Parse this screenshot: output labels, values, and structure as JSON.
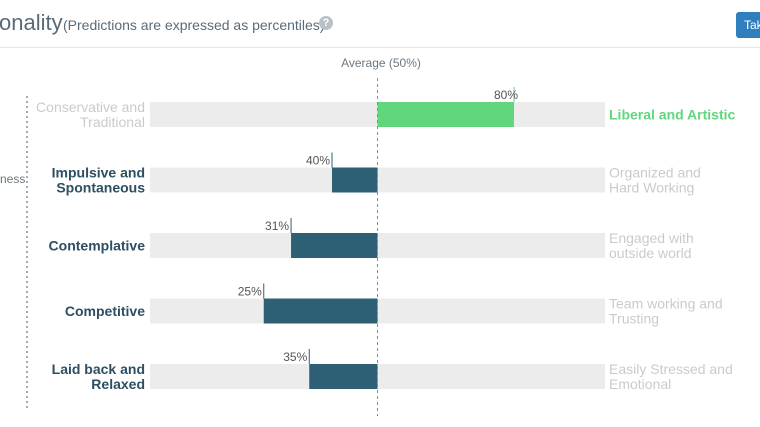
{
  "header": {
    "title": "onality",
    "subtitle": "(Predictions are expressed as percentiles)",
    "help_icon": "?",
    "take_button_label": "Tak"
  },
  "left_fragment": "ness",
  "colors": {
    "track": "#ececec",
    "highlight_bar": "#62d67c",
    "normal_bar": "#2d5f75",
    "active_label": "#2d4e63",
    "highlight_label": "#62d67c",
    "muted_label": "#c8cbce"
  },
  "chart_data": {
    "type": "bar",
    "orientation": "horizontal-diverging",
    "baseline": 50,
    "xlim": [
      0,
      100
    ],
    "reference_line_label": "Average (50%)",
    "categories": [
      {
        "left": [
          "Conservative and",
          "Traditional"
        ],
        "right": [
          "Liberal and Artistic"
        ],
        "value": 80,
        "value_label": "80%",
        "highlight": true,
        "active_side": "right"
      },
      {
        "left": [
          "Impulsive and",
          "Spontaneous"
        ],
        "right": [
          "Organized and",
          "Hard Working"
        ],
        "value": 40,
        "value_label": "40%",
        "highlight": false,
        "active_side": "left"
      },
      {
        "left": [
          "Contemplative"
        ],
        "right": [
          "Engaged with",
          "outside world"
        ],
        "value": 31,
        "value_label": "31%",
        "highlight": false,
        "active_side": "left"
      },
      {
        "left": [
          "Competitive"
        ],
        "right": [
          "Team working and",
          "Trusting"
        ],
        "value": 25,
        "value_label": "25%",
        "highlight": false,
        "active_side": "left"
      },
      {
        "left": [
          "Laid back and",
          "Relaxed"
        ],
        "right": [
          "Easily Stressed and",
          "Emotional"
        ],
        "value": 35,
        "value_label": "35%",
        "highlight": false,
        "active_side": "left"
      }
    ]
  }
}
